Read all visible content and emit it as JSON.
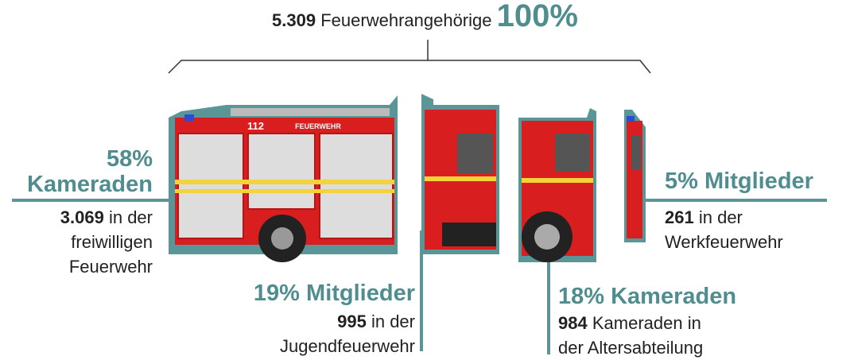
{
  "header": {
    "count": "5.309",
    "label": "Feuerwehrangehörige",
    "percent": "100%"
  },
  "truck": {
    "number": "112",
    "label": "FEUERWEHR"
  },
  "groups": [
    {
      "percent": "58%",
      "title": "Kameraden",
      "count": "3.069",
      "lines": [
        "in der",
        "freiwilligen",
        "Feuerwehr"
      ]
    },
    {
      "percent": "19%",
      "title": "Mitglieder",
      "count": "995",
      "lines": [
        "in der",
        "Jugendfeuerwehr"
      ]
    },
    {
      "percent": "18%",
      "title": "Kameraden",
      "count": "984",
      "lines": [
        "Kameraden in",
        "der Altersabteilung"
      ]
    },
    {
      "percent": "5%",
      "title": "Mitglieder",
      "count": "261",
      "lines": [
        "in der",
        "Werkfeuerwehr"
      ]
    }
  ]
}
